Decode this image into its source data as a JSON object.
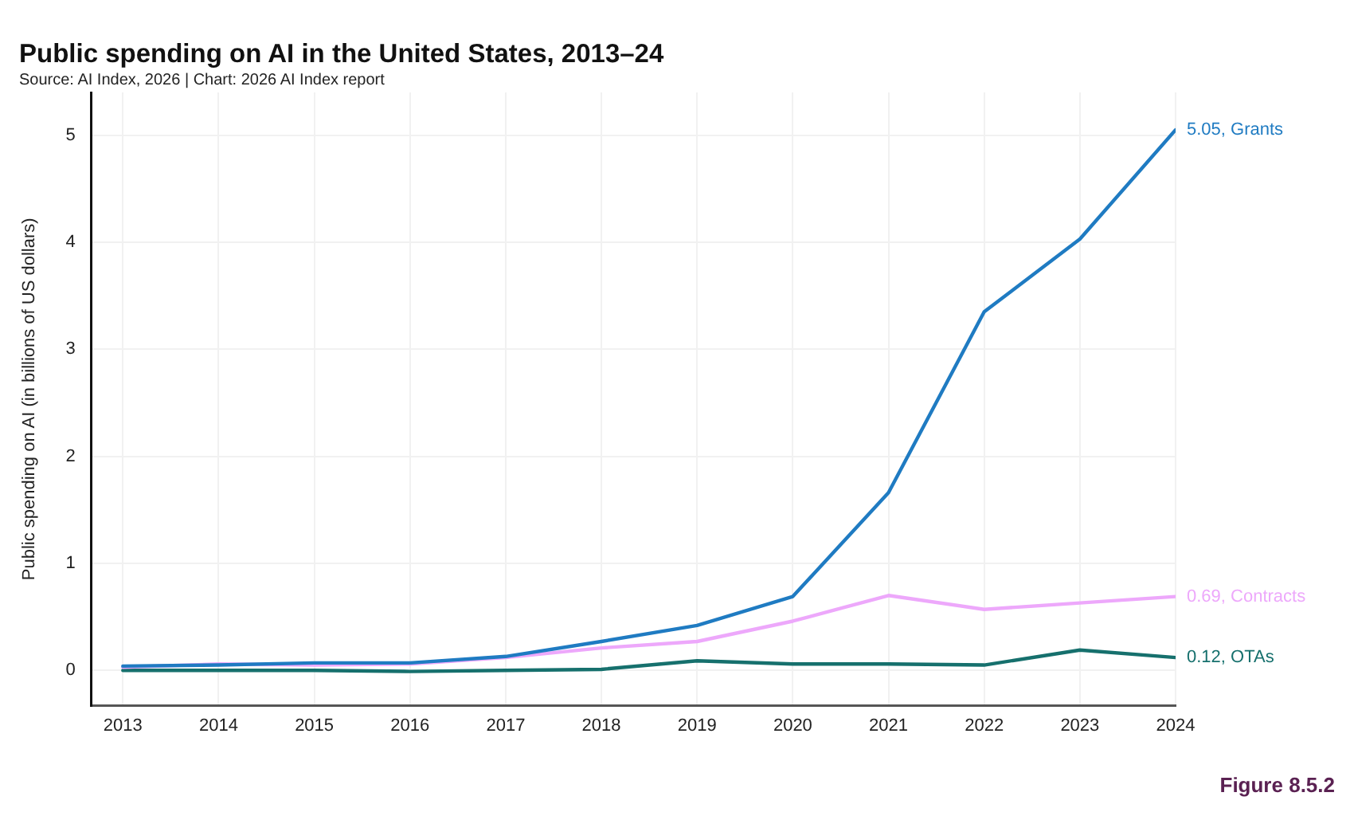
{
  "chart_data": {
    "type": "line",
    "title": "Public spending on AI in the United States, 2013–24",
    "subtitle": "Source: AI Index, 2026 | Chart: 2026 AI Index report",
    "ylabel": "Public spending on AI (in billions of US dollars)",
    "x": [
      2013,
      2014,
      2015,
      2016,
      2017,
      2018,
      2019,
      2020,
      2021,
      2022,
      2023,
      2024
    ],
    "series": [
      {
        "name": "Grants",
        "color": "#1f7bc2",
        "values": [
          0.04,
          0.05,
          0.07,
          0.07,
          0.13,
          0.27,
          0.42,
          0.69,
          1.66,
          3.35,
          4.03,
          5.05
        ],
        "value_labels": [
          null,
          null,
          null,
          null,
          null,
          null,
          null,
          null,
          null,
          null,
          null,
          "5.05,"
        ]
      },
      {
        "name": "Contracts",
        "color": "#eda8fb",
        "values": [
          0.03,
          0.06,
          0.05,
          0.06,
          0.12,
          0.21,
          0.27,
          0.46,
          0.7,
          0.57,
          0.63,
          0.69
        ],
        "value_labels": [
          null,
          null,
          null,
          null,
          null,
          null,
          null,
          null,
          null,
          null,
          null,
          "0.69,"
        ]
      },
      {
        "name": "OTAs",
        "color": "#16706d",
        "values": [
          0.0,
          0.0,
          0.0,
          -0.01,
          0.0,
          0.01,
          0.09,
          0.06,
          0.06,
          0.05,
          0.19,
          0.12
        ],
        "value_labels": [
          null,
          null,
          null,
          null,
          null,
          null,
          null,
          null,
          null,
          null,
          null,
          "0.12,"
        ]
      }
    ],
    "xlim": [
      2012.67,
      2024
    ],
    "xticks": [
      2013,
      2014,
      2015,
      2016,
      2017,
      2018,
      2019,
      2020,
      2021,
      2022,
      2023,
      2024
    ],
    "ylim": [
      -0.33,
      5.4
    ],
    "yticks": [
      0,
      1,
      2,
      3,
      4,
      5
    ],
    "grid": true,
    "legend": false,
    "annotations": [
      "Figure 8.5.2"
    ]
  }
}
